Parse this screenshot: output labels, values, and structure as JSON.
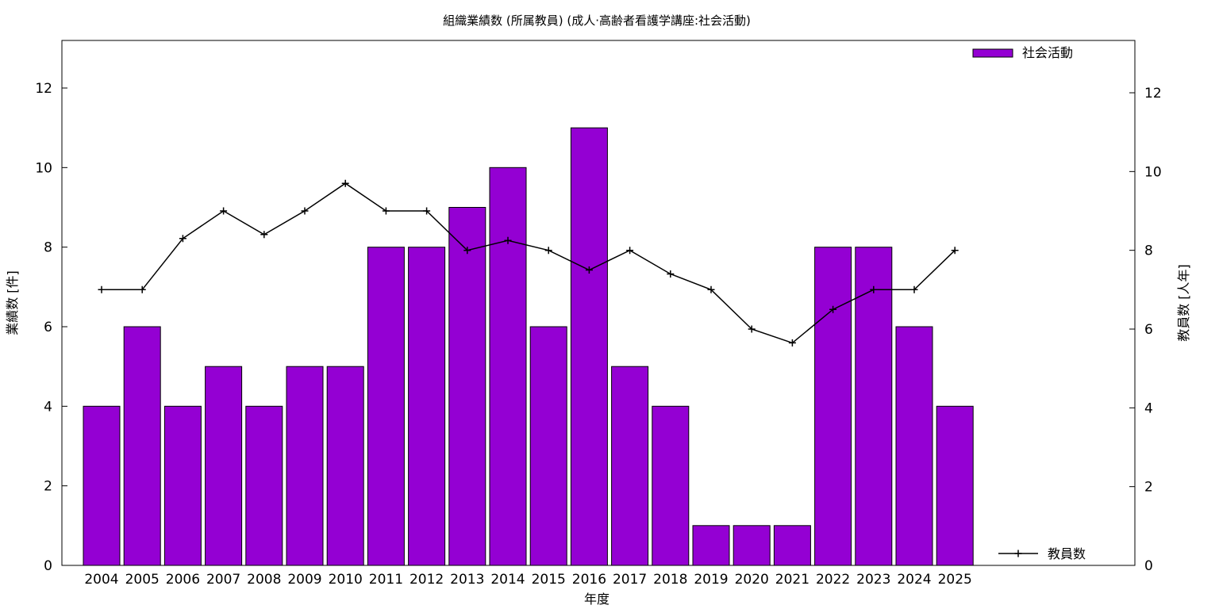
{
  "chart_data": {
    "type": "bar",
    "title": "組織業績数 (所属教員) (成人·高齢者看護学講座:社会活動)",
    "xlabel": "年度",
    "ylabel": "業績数 [件]",
    "y2label": "教員数 [人年]",
    "categories": [
      "2004",
      "2005",
      "2006",
      "2007",
      "2008",
      "2009",
      "2010",
      "2011",
      "2012",
      "2013",
      "2014",
      "2015",
      "2016",
      "2017",
      "2018",
      "2019",
      "2020",
      "2021",
      "2022",
      "2023",
      "2024",
      "2025"
    ],
    "series": [
      {
        "name": "社会活動",
        "type": "bar",
        "axis": "left",
        "color": "#9400d3",
        "values": [
          4,
          6,
          4,
          5,
          4,
          5,
          5,
          8,
          8,
          9,
          10,
          6,
          11,
          5,
          4,
          1,
          1,
          1,
          8,
          8,
          6,
          4
        ]
      },
      {
        "name": "教員数",
        "type": "line",
        "axis": "right",
        "color": "#000000",
        "values": [
          7,
          7,
          8.3,
          9,
          8.4,
          9,
          9.7,
          9,
          9,
          8,
          8.25,
          8,
          7.5,
          8,
          7.4,
          7,
          6,
          5.65,
          6.5,
          7,
          7,
          8
        ]
      }
    ],
    "ylim": [
      0,
      13.2
    ],
    "y2lim": [
      0,
      13.2
    ],
    "yticks": [
      0,
      2,
      4,
      6,
      8,
      10,
      12
    ],
    "y2ticks": [
      0,
      2,
      4,
      6,
      8,
      10,
      12
    ],
    "legend": [
      "top-right",
      "bottom-right"
    ]
  }
}
